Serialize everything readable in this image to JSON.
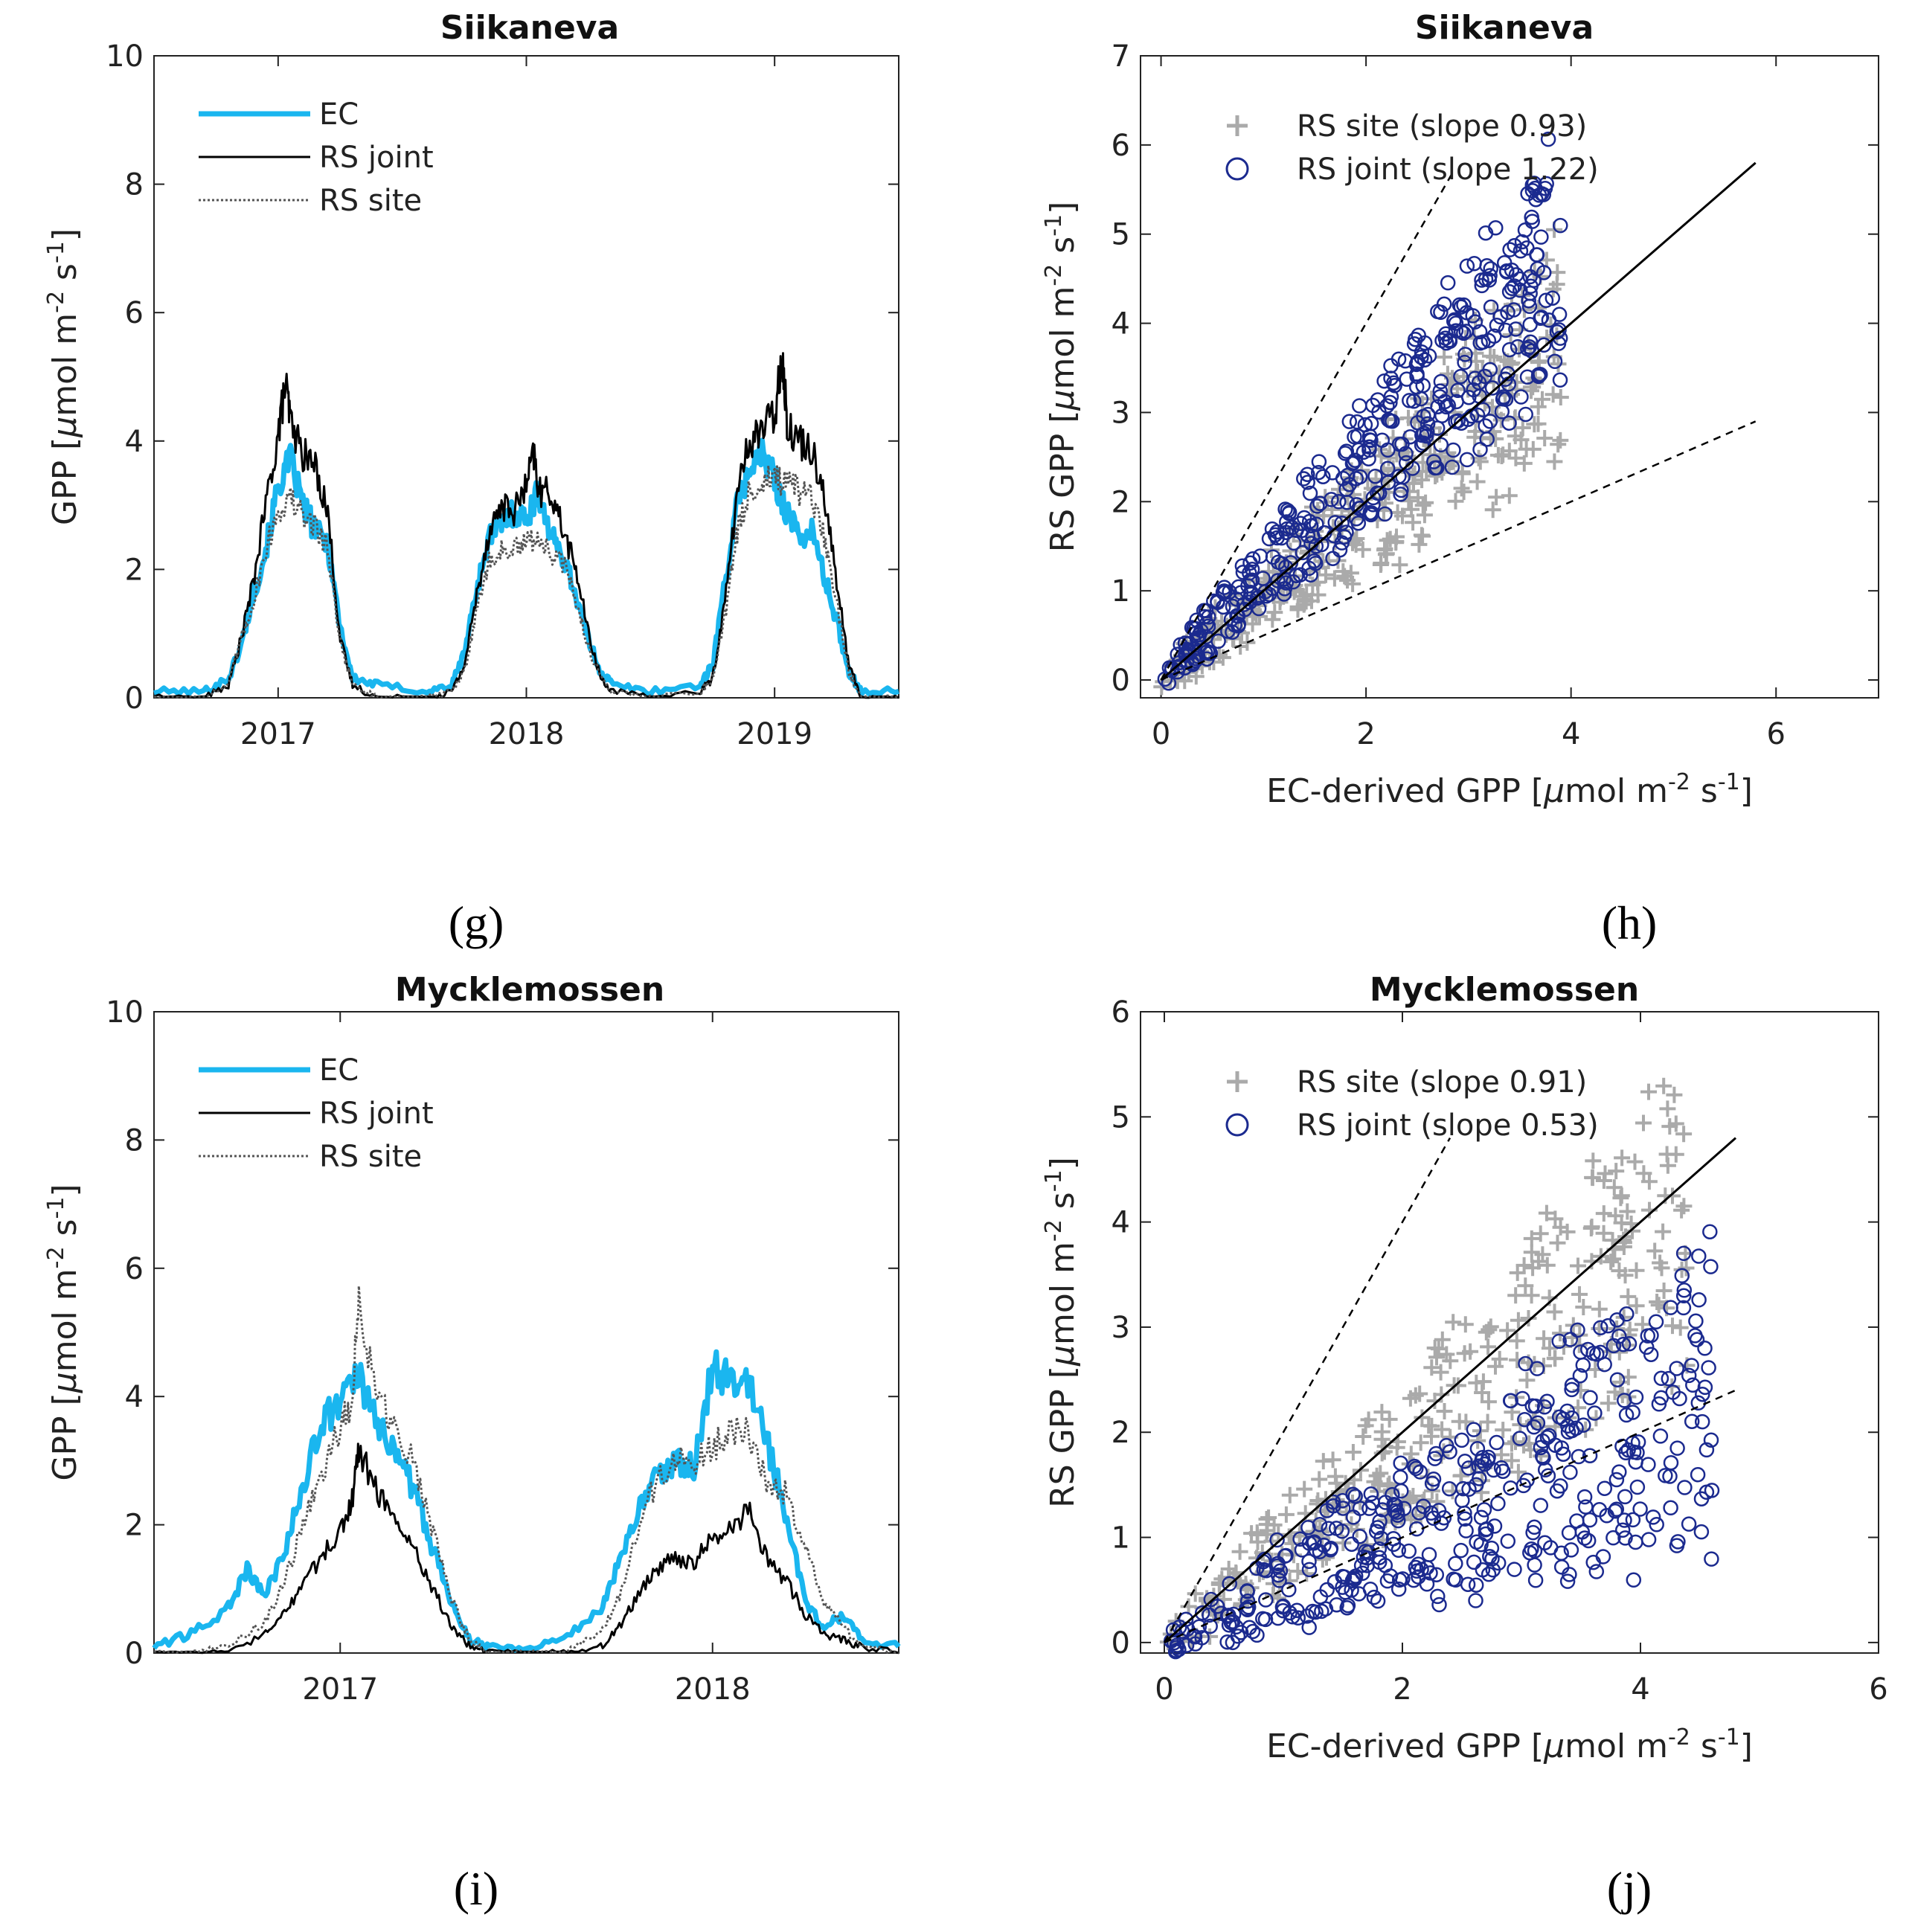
{
  "colors": {
    "ec": "#1ab6ef",
    "rs_joint": "#000000",
    "rs_site": "#555555",
    "site_pts": "#aaaaaa",
    "joint_pts": "#1b2a8f"
  },
  "panels": [
    {
      "id": "g",
      "label": "(g)",
      "chart_data": {
        "type": "line",
        "title": "Siikaneva",
        "ylabel": "GPP [μmol m⁻² s⁻¹]",
        "ylabel_parts": [
          "GPP [",
          "μ",
          "mol m",
          "-2",
          " s",
          "-1",
          "]"
        ],
        "xlabel": "",
        "ylim": [
          0,
          10
        ],
        "yticks": [
          0,
          2,
          4,
          6,
          8,
          10
        ],
        "xlim": [
          2016.5,
          2019.5
        ],
        "xticks": [
          2017,
          2018,
          2019
        ],
        "xtick_labels": [
          "2017",
          "2018",
          "2019"
        ],
        "legend": [
          "EC",
          "RS joint",
          "RS site"
        ],
        "series": [
          {
            "name": "EC",
            "x": [
              2016.5,
              2016.7,
              2016.8,
              2016.85,
              2016.9,
              2016.95,
              2017.0,
              2017.05,
              2017.1,
              2017.15,
              2017.2,
              2017.25,
              2017.3,
              2017.4,
              2017.6,
              2017.7,
              2017.75,
              2017.8,
              2017.85,
              2017.9,
              2017.95,
              2018.0,
              2018.05,
              2018.1,
              2018.15,
              2018.2,
              2018.25,
              2018.3,
              2018.35,
              2018.5,
              2018.7,
              2018.75,
              2018.8,
              2018.85,
              2018.9,
              2018.95,
              2019.0,
              2019.05,
              2019.1,
              2019.15,
              2019.2,
              2019.25,
              2019.3,
              2019.35,
              2019.5
            ],
            "values": [
              0.1,
              0.1,
              0.3,
              0.8,
              1.6,
              2.3,
              3.3,
              3.7,
              3.0,
              2.6,
              2.4,
              1.1,
              0.3,
              0.2,
              0.1,
              0.2,
              0.7,
              1.7,
              2.5,
              2.7,
              2.9,
              2.8,
              3.2,
              2.5,
              2.2,
              1.6,
              0.9,
              0.4,
              0.2,
              0.1,
              0.2,
              0.5,
              1.8,
              3.0,
              3.6,
              3.8,
              3.4,
              2.9,
              2.5,
              2.6,
              1.9,
              1.2,
              0.4,
              0.1,
              0.1
            ]
          },
          {
            "name": "RS joint",
            "x": [
              2016.5,
              2016.7,
              2016.8,
              2016.85,
              2016.9,
              2016.95,
              2017.0,
              2017.03,
              2017.05,
              2017.1,
              2017.15,
              2017.2,
              2017.25,
              2017.3,
              2017.4,
              2017.6,
              2017.7,
              2017.75,
              2017.8,
              2017.85,
              2017.9,
              2017.95,
              2018.0,
              2018.03,
              2018.05,
              2018.1,
              2018.15,
              2018.2,
              2018.25,
              2018.3,
              2018.35,
              2018.5,
              2018.7,
              2018.75,
              2018.8,
              2018.85,
              2018.9,
              2018.95,
              2019.0,
              2019.03,
              2019.05,
              2019.1,
              2019.15,
              2019.2,
              2019.25,
              2019.3,
              2019.35,
              2019.5
            ],
            "values": [
              0.0,
              0.0,
              0.2,
              0.9,
              1.8,
              3.0,
              4.1,
              4.9,
              4.3,
              3.8,
              3.6,
              2.9,
              0.9,
              0.2,
              0.0,
              0.0,
              0.1,
              0.5,
              1.6,
              2.6,
              3.0,
              2.9,
              3.3,
              3.8,
              3.2,
              3.2,
              2.6,
              2.0,
              1.0,
              0.3,
              0.1,
              0.0,
              0.1,
              0.3,
              1.5,
              3.2,
              4.0,
              4.2,
              4.4,
              5.4,
              4.3,
              4.0,
              3.9,
              3.2,
              1.8,
              0.5,
              0.0,
              0.0
            ]
          },
          {
            "name": "RS site",
            "x": [
              2016.5,
              2016.7,
              2016.8,
              2016.85,
              2016.9,
              2016.95,
              2017.0,
              2017.05,
              2017.1,
              2017.15,
              2017.2,
              2017.25,
              2017.3,
              2017.4,
              2017.6,
              2017.7,
              2017.75,
              2017.8,
              2017.85,
              2017.9,
              2017.95,
              2018.0,
              2018.05,
              2018.1,
              2018.15,
              2018.2,
              2018.25,
              2018.3,
              2018.35,
              2018.5,
              2018.7,
              2018.75,
              2018.8,
              2018.85,
              2018.9,
              2018.95,
              2019.0,
              2019.05,
              2019.1,
              2019.15,
              2019.2,
              2019.25,
              2019.3,
              2019.35,
              2019.5
            ],
            "values": [
              0.0,
              0.0,
              0.2,
              0.9,
              1.5,
              2.3,
              2.9,
              3.1,
              2.8,
              2.7,
              2.3,
              0.9,
              0.2,
              0.0,
              0.0,
              0.1,
              0.4,
              1.4,
              2.1,
              2.3,
              2.3,
              2.4,
              2.5,
              2.2,
              2.1,
              1.5,
              0.8,
              0.3,
              0.1,
              0.0,
              0.1,
              0.3,
              1.3,
              2.6,
              3.2,
              3.4,
              3.4,
              3.3,
              3.2,
              3.1,
              2.5,
              1.5,
              0.4,
              0.0,
              0.0
            ]
          }
        ]
      }
    },
    {
      "id": "h",
      "label": "(h)",
      "chart_data": {
        "type": "scatter",
        "title": "Siikaneva",
        "xlabel": "EC-derived GPP [μmol m⁻² s⁻¹]",
        "xlabel_parts": [
          "EC-derived GPP [",
          "μ",
          "mol m",
          "-2",
          " s",
          "-1",
          "]"
        ],
        "ylabel": "RS GPP [μmol m⁻² s⁻¹]",
        "ylabel_parts": [
          "RS GPP [",
          "μ",
          "mol m",
          "-2",
          " s",
          "-1",
          "]"
        ],
        "xlim": [
          -0.2,
          7
        ],
        "ylim": [
          -0.2,
          7
        ],
        "xticks": [
          0,
          2,
          4,
          6
        ],
        "yticks": [
          0,
          1,
          2,
          3,
          4,
          5,
          6,
          7
        ],
        "legend": [
          "RS site (slope 0.93)",
          "RS joint (slope 1.22)"
        ],
        "one_to_one_max": 5.8,
        "dashed_lines": [
          {
            "slope": 2.0,
            "xmax": 2.85
          },
          {
            "slope": 0.5,
            "xmax": 5.8
          }
        ],
        "series": [
          {
            "name": "RS site (slope 0.93)",
            "marker": "+",
            "slope": 0.93,
            "xmax": 3.9,
            "n": 380,
            "seed": 11
          },
          {
            "name": "RS joint (slope 1.22)",
            "marker": "o",
            "slope": 1.22,
            "xmax": 3.9,
            "n": 420,
            "seed": 23
          }
        ]
      }
    },
    {
      "id": "i",
      "label": "(i)",
      "chart_data": {
        "type": "line",
        "title": "Mycklemossen",
        "ylabel": "GPP [μmol m⁻² s⁻¹]",
        "ylabel_parts": [
          "GPP [",
          "μ",
          "mol m",
          "-2",
          " s",
          "-1",
          "]"
        ],
        "xlabel": "",
        "ylim": [
          0,
          10
        ],
        "yticks": [
          0,
          2,
          4,
          6,
          8,
          10
        ],
        "xlim": [
          2016.5,
          2018.5
        ],
        "xticks": [
          2017,
          2018
        ],
        "xtick_labels": [
          "2017",
          "2018"
        ],
        "legend": [
          "EC",
          "RS joint",
          "RS site"
        ],
        "series": [
          {
            "name": "EC",
            "x": [
              2016.5,
              2016.6,
              2016.7,
              2016.75,
              2016.8,
              2016.85,
              2016.9,
              2016.95,
              2017.0,
              2017.05,
              2017.1,
              2017.15,
              2017.2,
              2017.25,
              2017.3,
              2017.35,
              2017.4,
              2017.5,
              2017.6,
              2017.7,
              2017.75,
              2017.8,
              2017.85,
              2017.9,
              2017.95,
              2018.0,
              2018.05,
              2018.1,
              2018.15,
              2018.2,
              2018.25,
              2018.3,
              2018.35,
              2018.4,
              2018.5
            ],
            "values": [
              0.1,
              0.3,
              0.7,
              1.3,
              0.9,
              1.6,
              2.6,
              3.6,
              3.9,
              4.3,
              3.5,
              3.2,
              2.5,
              1.6,
              0.8,
              0.2,
              0.1,
              0.1,
              0.2,
              0.7,
              1.4,
              2.2,
              2.8,
              3.0,
              2.9,
              4.5,
              4.2,
              4.2,
              3.2,
              2.1,
              0.8,
              0.4,
              0.6,
              0.2,
              0.1
            ]
          },
          {
            "name": "RS joint",
            "x": [
              2016.5,
              2016.6,
              2016.7,
              2016.8,
              2016.85,
              2016.9,
              2016.95,
              2017.0,
              2017.03,
              2017.05,
              2017.1,
              2017.15,
              2017.2,
              2017.25,
              2017.3,
              2017.35,
              2017.4,
              2017.5,
              2017.6,
              2017.7,
              2017.75,
              2017.8,
              2017.85,
              2017.9,
              2017.95,
              2018.0,
              2018.05,
              2018.1,
              2018.15,
              2018.2,
              2018.25,
              2018.3,
              2018.35,
              2018.4,
              2018.5
            ],
            "values": [
              0.0,
              0.0,
              0.0,
              0.3,
              0.6,
              1.1,
              1.5,
              1.9,
              2.3,
              3.2,
              2.5,
              2.1,
              1.6,
              1.0,
              0.4,
              0.1,
              0.0,
              0.0,
              0.0,
              0.1,
              0.4,
              0.9,
              1.3,
              1.5,
              1.4,
              1.8,
              2.0,
              2.2,
              1.4,
              1.1,
              0.6,
              0.3,
              0.2,
              0.1,
              0.0
            ]
          },
          {
            "name": "RS site",
            "x": [
              2016.5,
              2016.6,
              2016.7,
              2016.8,
              2016.85,
              2016.9,
              2016.95,
              2017.0,
              2017.03,
              2017.05,
              2017.1,
              2017.15,
              2017.2,
              2017.25,
              2017.3,
              2017.35,
              2017.4,
              2017.5,
              2017.6,
              2017.7,
              2017.75,
              2017.8,
              2017.85,
              2017.9,
              2017.95,
              2018.0,
              2018.05,
              2018.1,
              2018.15,
              2018.2,
              2018.25,
              2018.3,
              2018.35,
              2018.4,
              2018.5
            ],
            "values": [
              0.0,
              0.0,
              0.1,
              0.5,
              1.1,
              2.0,
              2.8,
              3.5,
              3.9,
              5.5,
              3.9,
              3.6,
              2.9,
              1.9,
              0.8,
              0.2,
              0.0,
              0.0,
              0.0,
              0.3,
              0.9,
              1.9,
              2.7,
              3.0,
              3.0,
              3.2,
              3.5,
              3.4,
              2.6,
              2.5,
              1.6,
              0.8,
              0.4,
              0.1,
              0.0
            ]
          }
        ]
      }
    },
    {
      "id": "j",
      "label": "(j)",
      "chart_data": {
        "type": "scatter",
        "title": "Mycklemossen",
        "xlabel": "EC-derived GPP [μmol m⁻² s⁻¹]",
        "xlabel_parts": [
          "EC-derived GPP [",
          "μ",
          "mol m",
          "-2",
          " s",
          "-1",
          "]"
        ],
        "ylabel": "RS GPP [μmol m⁻² s⁻¹]",
        "ylabel_parts": [
          "RS GPP [",
          "μ",
          "mol m",
          "-2",
          " s",
          "-1",
          "]"
        ],
        "xlim": [
          -0.2,
          6
        ],
        "ylim": [
          -0.1,
          6
        ],
        "xticks": [
          0,
          2,
          4,
          6
        ],
        "yticks": [
          0,
          1,
          2,
          3,
          4,
          5,
          6
        ],
        "legend": [
          "RS site (slope 0.91)",
          "RS joint (slope 0.53)"
        ],
        "one_to_one_max": 4.8,
        "dashed_lines": [
          {
            "slope": 2.0,
            "xmax": 2.4
          },
          {
            "slope": 0.5,
            "xmax": 4.8
          }
        ],
        "series": [
          {
            "name": "RS site (slope 0.91)",
            "marker": "+",
            "slope": 0.91,
            "xmax": 4.4,
            "n": 360,
            "seed": 37
          },
          {
            "name": "RS joint (slope 0.53)",
            "marker": "o",
            "slope": 0.53,
            "xmax": 4.6,
            "n": 420,
            "seed": 53
          }
        ]
      }
    }
  ]
}
